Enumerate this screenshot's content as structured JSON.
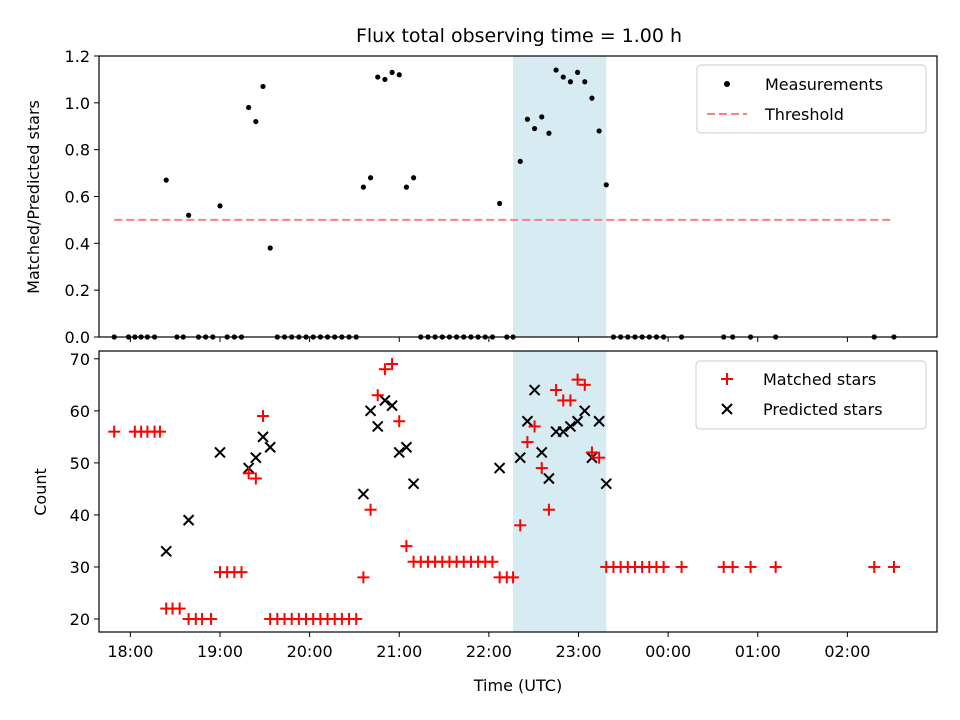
{
  "chart_data": [
    {
      "type": "scatter",
      "title": "Flux total observing time = 1.00 h",
      "xlabel": "",
      "ylabel": "Matched/Predicted stars",
      "ylim": [
        0,
        1.2
      ],
      "yticks": [
        "0.0",
        "0.2",
        "0.4",
        "0.6",
        "0.8",
        "1.0",
        "1.2"
      ],
      "threshold": 0.5,
      "threshold_color": "#ff7f7f",
      "highlight_color": "#add8e6",
      "highlight_span": [
        22.27,
        23.31
      ],
      "legend": {
        "placement": "top-right",
        "entries": [
          "Measurements",
          "Threshold"
        ]
      },
      "series": [
        {
          "name": "Measurements",
          "color": "#000000",
          "marker": "dot",
          "points": [
            [
              17.82,
              0
            ],
            [
              17.98,
              0
            ],
            [
              18.05,
              0
            ],
            [
              18.12,
              0
            ],
            [
              18.19,
              0
            ],
            [
              18.27,
              0
            ],
            [
              18.4,
              0.67
            ],
            [
              18.52,
              0
            ],
            [
              18.59,
              0
            ],
            [
              18.65,
              0.52
            ],
            [
              18.76,
              0
            ],
            [
              18.84,
              0
            ],
            [
              18.92,
              0
            ],
            [
              19.0,
              0.56
            ],
            [
              19.08,
              0
            ],
            [
              19.16,
              0
            ],
            [
              19.24,
              0
            ],
            [
              19.32,
              0.98
            ],
            [
              19.4,
              0.92
            ],
            [
              19.48,
              1.07
            ],
            [
              19.56,
              0.38
            ],
            [
              19.64,
              0
            ],
            [
              19.72,
              0
            ],
            [
              19.8,
              0
            ],
            [
              19.88,
              0
            ],
            [
              19.96,
              0
            ],
            [
              20.04,
              0
            ],
            [
              20.12,
              0
            ],
            [
              20.2,
              0
            ],
            [
              20.28,
              0
            ],
            [
              20.36,
              0
            ],
            [
              20.44,
              0
            ],
            [
              20.52,
              0
            ],
            [
              20.6,
              0.64
            ],
            [
              20.68,
              0.68
            ],
            [
              20.76,
              1.11
            ],
            [
              20.84,
              1.1
            ],
            [
              20.92,
              1.13
            ],
            [
              21.0,
              1.12
            ],
            [
              21.08,
              0.64
            ],
            [
              21.16,
              0.68
            ],
            [
              21.24,
              0
            ],
            [
              21.32,
              0
            ],
            [
              21.4,
              0
            ],
            [
              21.48,
              0
            ],
            [
              21.56,
              0
            ],
            [
              21.64,
              0
            ],
            [
              21.72,
              0
            ],
            [
              21.8,
              0
            ],
            [
              21.88,
              0
            ],
            [
              21.96,
              0
            ],
            [
              22.04,
              0
            ],
            [
              22.12,
              0.57
            ],
            [
              22.2,
              0
            ],
            [
              22.27,
              0
            ],
            [
              22.35,
              0.75
            ],
            [
              22.43,
              0.93
            ],
            [
              22.51,
              0.89
            ],
            [
              22.59,
              0.94
            ],
            [
              22.67,
              0.87
            ],
            [
              22.75,
              1.14
            ],
            [
              22.83,
              1.11
            ],
            [
              22.91,
              1.09
            ],
            [
              22.99,
              1.13
            ],
            [
              23.07,
              1.09
            ],
            [
              23.15,
              1.02
            ],
            [
              23.23,
              0.88
            ],
            [
              23.31,
              0.65
            ],
            [
              23.39,
              0
            ],
            [
              23.47,
              0
            ],
            [
              23.55,
              0
            ],
            [
              23.63,
              0
            ],
            [
              23.71,
              0
            ],
            [
              23.79,
              0
            ],
            [
              23.87,
              0
            ],
            [
              23.95,
              0
            ],
            [
              24.15,
              0
            ],
            [
              24.62,
              0
            ],
            [
              24.72,
              0
            ],
            [
              24.92,
              0
            ],
            [
              25.2,
              0
            ],
            [
              26.3,
              0
            ],
            [
              26.52,
              0
            ]
          ]
        }
      ],
      "xticks": [
        "18:00",
        "19:00",
        "20:00",
        "21:00",
        "22:00",
        "23:00",
        "00:00",
        "01:00",
        "02:00"
      ]
    },
    {
      "type": "scatter",
      "title": "",
      "xlabel": "Time (UTC)",
      "ylabel": "Count",
      "ylim": [
        17.5,
        71.5
      ],
      "yticks": [
        "20",
        "30",
        "40",
        "50",
        "60",
        "70"
      ],
      "xticks": [
        "18:00",
        "19:00",
        "20:00",
        "21:00",
        "22:00",
        "23:00",
        "00:00",
        "01:00",
        "02:00"
      ],
      "highlight_color": "#add8e6",
      "highlight_span": [
        22.27,
        23.31
      ],
      "legend": {
        "placement": "top-right",
        "entries": [
          "Matched stars",
          "Predicted stars"
        ]
      },
      "series": [
        {
          "name": "Matched stars",
          "color": "#ff0000",
          "marker": "plus",
          "points": [
            [
              17.82,
              56
            ],
            [
              18.05,
              56
            ],
            [
              18.12,
              56
            ],
            [
              18.19,
              56
            ],
            [
              18.27,
              56
            ],
            [
              18.33,
              56
            ],
            [
              18.4,
              22
            ],
            [
              18.47,
              22
            ],
            [
              18.55,
              22
            ],
            [
              18.65,
              20
            ],
            [
              18.73,
              20
            ],
            [
              18.8,
              20
            ],
            [
              18.9,
              20
            ],
            [
              19.0,
              29
            ],
            [
              19.08,
              29
            ],
            [
              19.16,
              29
            ],
            [
              19.24,
              29
            ],
            [
              19.32,
              48
            ],
            [
              19.4,
              47
            ],
            [
              19.48,
              59
            ],
            [
              19.56,
              20
            ],
            [
              19.64,
              20
            ],
            [
              19.72,
              20
            ],
            [
              19.8,
              20
            ],
            [
              19.88,
              20
            ],
            [
              19.96,
              20
            ],
            [
              20.04,
              20
            ],
            [
              20.12,
              20
            ],
            [
              20.2,
              20
            ],
            [
              20.28,
              20
            ],
            [
              20.36,
              20
            ],
            [
              20.44,
              20
            ],
            [
              20.52,
              20
            ],
            [
              20.6,
              28
            ],
            [
              20.68,
              41
            ],
            [
              20.76,
              63
            ],
            [
              20.84,
              68
            ],
            [
              20.92,
              69
            ],
            [
              21.0,
              58
            ],
            [
              21.08,
              34
            ],
            [
              21.16,
              31
            ],
            [
              21.24,
              31
            ],
            [
              21.32,
              31
            ],
            [
              21.4,
              31
            ],
            [
              21.48,
              31
            ],
            [
              21.56,
              31
            ],
            [
              21.64,
              31
            ],
            [
              21.72,
              31
            ],
            [
              21.8,
              31
            ],
            [
              21.88,
              31
            ],
            [
              21.96,
              31
            ],
            [
              22.04,
              31
            ],
            [
              22.12,
              28
            ],
            [
              22.2,
              28
            ],
            [
              22.27,
              28
            ],
            [
              22.35,
              38
            ],
            [
              22.43,
              54
            ],
            [
              22.51,
              57
            ],
            [
              22.59,
              49
            ],
            [
              22.67,
              41
            ],
            [
              22.75,
              64
            ],
            [
              22.83,
              62
            ],
            [
              22.91,
              62
            ],
            [
              22.99,
              66
            ],
            [
              23.07,
              65
            ],
            [
              23.15,
              52
            ],
            [
              23.23,
              51
            ],
            [
              23.31,
              30
            ],
            [
              23.39,
              30
            ],
            [
              23.47,
              30
            ],
            [
              23.55,
              30
            ],
            [
              23.63,
              30
            ],
            [
              23.71,
              30
            ],
            [
              23.79,
              30
            ],
            [
              23.87,
              30
            ],
            [
              23.95,
              30
            ],
            [
              24.15,
              30
            ],
            [
              24.62,
              30
            ],
            [
              24.72,
              30
            ],
            [
              24.92,
              30
            ],
            [
              25.2,
              30
            ],
            [
              26.3,
              30
            ],
            [
              26.52,
              30
            ]
          ]
        },
        {
          "name": "Predicted stars",
          "color": "#000000",
          "marker": "x",
          "points": [
            [
              18.4,
              33
            ],
            [
              18.65,
              39
            ],
            [
              19.0,
              52
            ],
            [
              19.32,
              49
            ],
            [
              19.4,
              51
            ],
            [
              19.48,
              55
            ],
            [
              19.56,
              53
            ],
            [
              20.6,
              44
            ],
            [
              20.68,
              60
            ],
            [
              20.76,
              57
            ],
            [
              20.84,
              62
            ],
            [
              20.92,
              61
            ],
            [
              21.0,
              52
            ],
            [
              21.08,
              53
            ],
            [
              21.16,
              46
            ],
            [
              22.12,
              49
            ],
            [
              22.35,
              51
            ],
            [
              22.43,
              58
            ],
            [
              22.51,
              64
            ],
            [
              22.59,
              52
            ],
            [
              22.67,
              47
            ],
            [
              22.75,
              56
            ],
            [
              22.83,
              56
            ],
            [
              22.91,
              57
            ],
            [
              22.99,
              58
            ],
            [
              23.07,
              60
            ],
            [
              23.15,
              51
            ],
            [
              23.23,
              58
            ],
            [
              23.31,
              46
            ]
          ]
        }
      ]
    }
  ]
}
